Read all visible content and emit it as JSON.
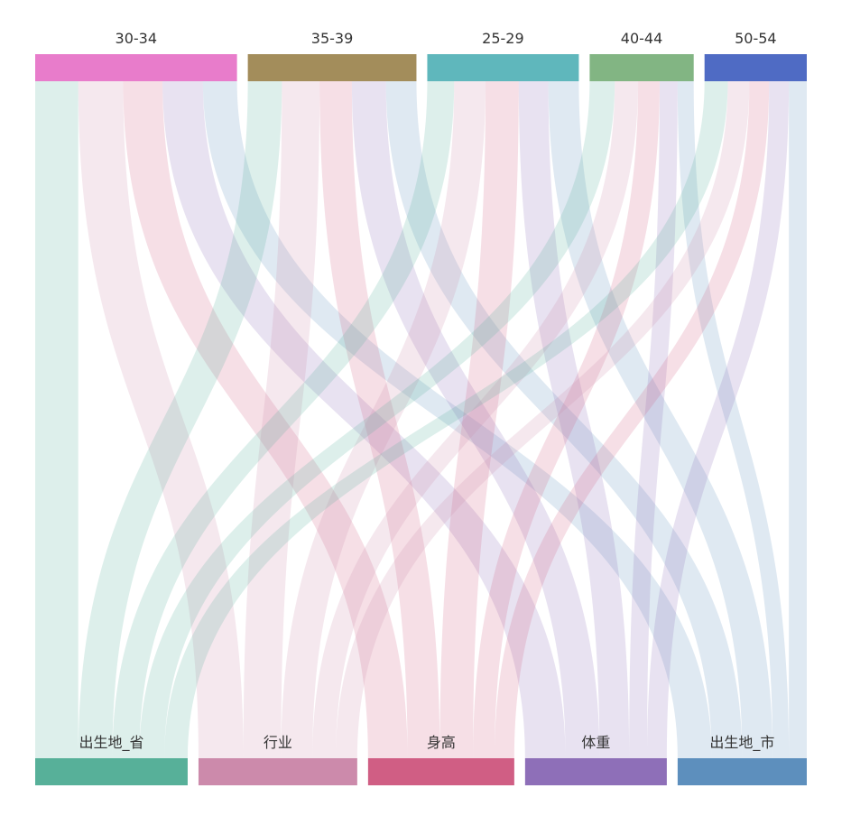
{
  "chart_data": {
    "type": "sankey",
    "orientation": "vertical",
    "sources": [
      {
        "name": "30-34",
        "color": "#e87ccb"
      },
      {
        "name": "35-39",
        "color": "#a38d5b"
      },
      {
        "name": "25-29",
        "color": "#5fb7bc"
      },
      {
        "name": "40-44",
        "color": "#82b583"
      },
      {
        "name": "50-54",
        "color": "#4f6bc4"
      }
    ],
    "targets": [
      {
        "name": "出生地_省",
        "color": "#57b099"
      },
      {
        "name": "行业",
        "color": "#cc8aab"
      },
      {
        "name": "身高",
        "color": "#d05e84"
      },
      {
        "name": "体重",
        "color": "#8e6fb8"
      },
      {
        "name": "出生地_市",
        "color": "#5d8fbd"
      }
    ],
    "links": [
      {
        "source": "30-34",
        "target": "出生地_省",
        "value": 48
      },
      {
        "source": "30-34",
        "target": "行业",
        "value": 50
      },
      {
        "source": "30-34",
        "target": "身高",
        "value": 44
      },
      {
        "source": "30-34",
        "target": "体重",
        "value": 45
      },
      {
        "source": "30-34",
        "target": "出生地_市",
        "value": 38
      },
      {
        "source": "35-39",
        "target": "出生地_省",
        "value": 38
      },
      {
        "source": "35-39",
        "target": "行业",
        "value": 42
      },
      {
        "source": "35-39",
        "target": "身高",
        "value": 36
      },
      {
        "source": "35-39",
        "target": "体重",
        "value": 38
      },
      {
        "source": "35-39",
        "target": "出生地_市",
        "value": 34
      },
      {
        "source": "25-29",
        "target": "出生地_省",
        "value": 30
      },
      {
        "source": "25-29",
        "target": "行业",
        "value": 35
      },
      {
        "source": "25-29",
        "target": "身高",
        "value": 37
      },
      {
        "source": "25-29",
        "target": "体重",
        "value": 33
      },
      {
        "source": "25-29",
        "target": "出生地_市",
        "value": 34
      },
      {
        "source": "40-44",
        "target": "出生地_省",
        "value": 28
      },
      {
        "source": "40-44",
        "target": "行业",
        "value": 26
      },
      {
        "source": "40-44",
        "target": "身高",
        "value": 24
      },
      {
        "source": "40-44",
        "target": "体重",
        "value": 20
      },
      {
        "source": "40-44",
        "target": "出生地_市",
        "value": 18
      },
      {
        "source": "50-54",
        "target": "出生地_省",
        "value": 26
      },
      {
        "source": "50-54",
        "target": "行业",
        "value": 24
      },
      {
        "source": "50-54",
        "target": "身高",
        "value": 22
      },
      {
        "source": "50-54",
        "target": "体重",
        "value": 22
      },
      {
        "source": "50-54",
        "target": "出生地_市",
        "value": 20
      }
    ]
  }
}
